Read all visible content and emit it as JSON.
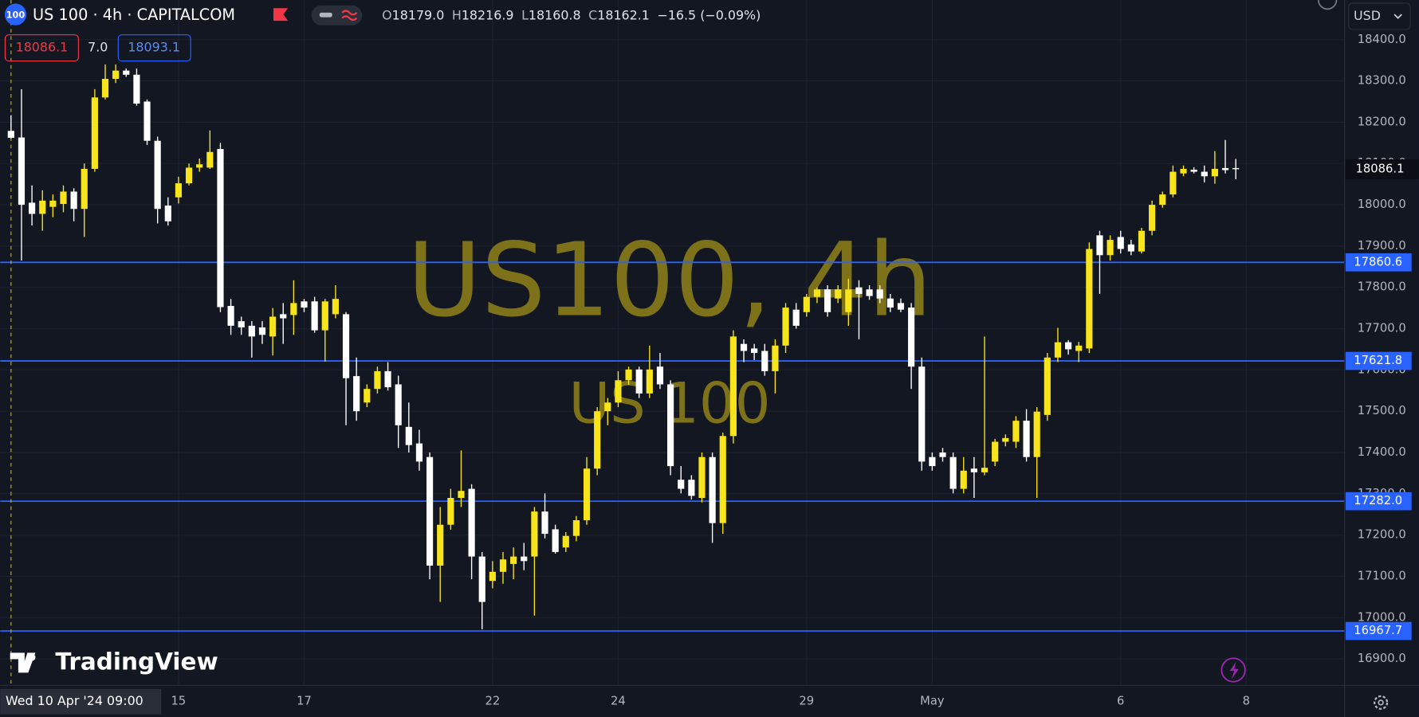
{
  "header": {
    "badge": "100",
    "symbol": "US 100 · 4h · CAPITALCOM",
    "ohlc": [
      {
        "key": "O",
        "value": "18179.0"
      },
      {
        "key": "H",
        "value": "18216.9"
      },
      {
        "key": "L",
        "value": "18160.8"
      },
      {
        "key": "C",
        "value": "18162.1"
      }
    ],
    "change": "−16.5 (−0.09%)",
    "sell": "18086.1",
    "spread": "7.0",
    "buy": "18093.1",
    "currency": "USD",
    "brand": "TradingView"
  },
  "watermark": {
    "title": "US100, 4h",
    "subtitle": "US 100"
  },
  "chart_data": {
    "type": "candlestick",
    "grid": true,
    "up_color": "#f7e41b",
    "down_color": "#ffffff",
    "open": [
      18179.0,
      18163,
      18005,
      17978,
      17995,
      18002,
      18032,
      17990,
      18087,
      18260,
      18305,
      18325,
      18315,
      18250,
      18155,
      17998,
      18018,
      18052,
      18090,
      18090,
      18135,
      17755,
      17718,
      17707,
      17703,
      17681,
      17735,
      17733,
      17766,
      17766,
      17696,
      17735,
      17735,
      17585,
      17521,
      17554,
      17597,
      17565,
      17462,
      17422,
      17389,
      17126,
      17225,
      17290,
      17312,
      17148,
      17089,
      17111,
      17130,
      17148,
      17148,
      17257,
      17214,
      17170,
      17198,
      17236,
      17361,
      17500,
      17521,
      17575,
      17601,
      17543,
      17608,
      17565,
      17334,
      17334,
      17290,
      17389,
      17229,
      17440,
      17663,
      17652,
      17646,
      17597,
      17659,
      17746,
      17740,
      17777,
      17795,
      17773,
      17740,
      17800,
      17795,
      17795,
      17773,
      17762,
      17751,
      17608,
      17389,
      17400,
      17389,
      17312,
      17361,
      17352,
      17378,
      17426,
      17426,
      17477,
      17389,
      17491,
      17630,
      17667,
      17646,
      17652,
      17926,
      17878,
      17922,
      17904,
      17887,
      17937,
      18000,
      18025,
      18076,
      18085,
      18080,
      18069,
      18089,
      18089
    ],
    "high": [
      18216.9,
      18280,
      18047,
      18035,
      18025,
      18047,
      18040,
      18100,
      18280,
      18340,
      18340,
      18330,
      18330,
      18255,
      18165,
      18018,
      18068,
      18100,
      18112,
      18180,
      18150,
      17772,
      17729,
      17718,
      17718,
      17750,
      17762,
      17817,
      17772,
      17777,
      17772,
      17805,
      17740,
      17630,
      17565,
      17608,
      17619,
      17586,
      17521,
      17455,
      17400,
      17268,
      17312,
      17405,
      17323,
      17159,
      17137,
      17159,
      17170,
      17181,
      17268,
      17301,
      17225,
      17207,
      17246,
      17389,
      17510,
      17532,
      17597,
      17608,
      17608,
      17659,
      17641,
      17575,
      17367,
      17345,
      17400,
      17400,
      17448,
      17696,
      17674,
      17663,
      17663,
      17674,
      17762,
      17762,
      17784,
      17800,
      17805,
      17805,
      17821,
      17817,
      17805,
      17805,
      17784,
      17773,
      17762,
      17630,
      17400,
      17411,
      17400,
      17389,
      17389,
      17681,
      17433,
      17444,
      17488,
      17505,
      17510,
      17641,
      17702,
      17672,
      17668,
      17909,
      17937,
      17926,
      17937,
      17915,
      17944,
      18010,
      18032,
      18095,
      18095,
      18091,
      18095,
      18130,
      18157,
      18111
    ],
    "low": [
      18160.8,
      17865,
      17950,
      17937,
      17970,
      17982,
      17960,
      17922,
      18080,
      18255,
      18295,
      18310,
      18240,
      18145,
      17955,
      17950,
      18003,
      18047,
      18080,
      18087,
      17740,
      17685,
      17685,
      17630,
      17663,
      17635,
      17663,
      17685,
      17740,
      17690,
      17620,
      17725,
      17466,
      17477,
      17510,
      17543,
      17550,
      17411,
      17400,
      17356,
      17093,
      17038,
      17213,
      17268,
      17093,
      16972,
      17071,
      17082,
      17093,
      17115,
      17005,
      17192,
      17155,
      17159,
      17185,
      17225,
      17345,
      17466,
      17510,
      17564,
      17532,
      17532,
      17554,
      17345,
      17301,
      17286,
      17279,
      17181,
      17203,
      17422,
      17619,
      17624,
      17586,
      17543,
      17641,
      17700,
      17729,
      17762,
      17729,
      17762,
      17707,
      17674,
      17770,
      17762,
      17740,
      17740,
      17554,
      17356,
      17356,
      17378,
      17301,
      17301,
      17290,
      17345,
      17367,
      17415,
      17411,
      17378,
      17290,
      17477,
      17619,
      17637,
      17619,
      17641,
      17784,
      17865,
      17882,
      17878,
      17882,
      17926,
      17993,
      18018,
      18069,
      18076,
      18054,
      18051,
      18076,
      18062
    ],
    "close": [
      18162.1,
      18000,
      17978,
      18010,
      18010,
      18032,
      17990,
      18087,
      18260,
      18305,
      18325,
      18315,
      18245,
      18155,
      17990,
      17960,
      18052,
      18090,
      18098,
      18128,
      17752,
      17707,
      17703,
      17681,
      17685,
      17729,
      17725,
      17762,
      17751,
      17696,
      17766,
      17772,
      17580,
      17500,
      17554,
      17597,
      17558,
      17466,
      17418,
      17378,
      17126,
      17225,
      17290,
      17307,
      17148,
      17038,
      17111,
      17141,
      17148,
      17137,
      17257,
      17203,
      17159,
      17198,
      17236,
      17361,
      17500,
      17521,
      17575,
      17601,
      17543,
      17601,
      17565,
      17367,
      17312,
      17295,
      17389,
      17229,
      17440,
      17681,
      17646,
      17641,
      17597,
      17659,
      17751,
      17707,
      17777,
      17795,
      17740,
      17795,
      17795,
      17784,
      17779,
      17773,
      17751,
      17746,
      17608,
      17378,
      17367,
      17389,
      17312,
      17356,
      17352,
      17363,
      17426,
      17435,
      17477,
      17389,
      17499,
      17630,
      17667,
      17650,
      17659,
      17893,
      17878,
      17915,
      17893,
      17887,
      17937,
      18000,
      18025,
      18080,
      18087,
      18080,
      18069,
      18087,
      18084,
      18086.1
    ],
    "ylim": [
      16836,
      18496
    ],
    "yticks": [
      {
        "value": 16900,
        "label": "16900.0"
      },
      {
        "value": 17000,
        "label": "17000.0"
      },
      {
        "value": 17100,
        "label": "17100.0"
      },
      {
        "value": 17200,
        "label": "17200.0"
      },
      {
        "value": 17300,
        "label": "17300.0"
      },
      {
        "value": 17400,
        "label": "17400.0"
      },
      {
        "value": 17500,
        "label": "17500.0"
      },
      {
        "value": 17600,
        "label": "17600.0"
      },
      {
        "value": 17700,
        "label": "17700.0"
      },
      {
        "value": 17800,
        "label": "17800.0"
      },
      {
        "value": 17900,
        "label": "17900.0"
      },
      {
        "value": 18000,
        "label": "18000.0"
      },
      {
        "value": 18100,
        "label": "18100.0"
      },
      {
        "value": 18200,
        "label": "18200.0"
      },
      {
        "value": 18300,
        "label": "18300.0"
      },
      {
        "value": 18400,
        "label": "18400.0"
      }
    ],
    "xticks": [
      {
        "value": 16,
        "label": "15"
      },
      {
        "value": 28,
        "label": "17"
      },
      {
        "value": 46,
        "label": "22"
      },
      {
        "value": 58,
        "label": "24"
      },
      {
        "value": 76,
        "label": "29"
      },
      {
        "value": 88,
        "label": "May"
      },
      {
        "value": 106,
        "label": "6"
      },
      {
        "value": 118,
        "label": "8"
      }
    ],
    "hline_color": "#2962ff",
    "hlines": [
      17860.6,
      17621.8,
      {
        "value": 17282,
        "label": "17282.0"
      },
      16967.7
    ],
    "last_price": 18086.1,
    "crosshair_label": "Wed 10 Apr '24 09:00"
  }
}
